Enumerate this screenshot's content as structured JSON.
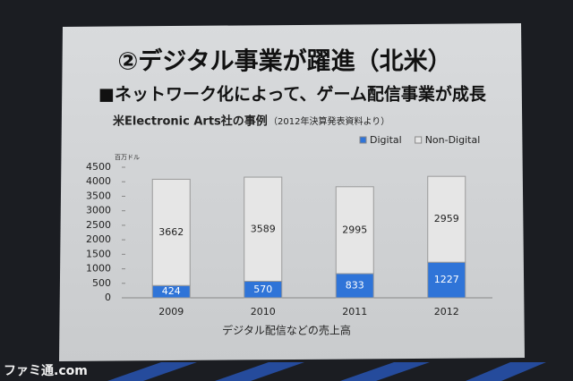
{
  "chart_data": {
    "type": "stacked-bar",
    "title": "②デジタル事業が躍進（北米）",
    "subtitle": "■ネットワーク化によって、ゲーム配信事業が成長",
    "chart_title": "米Electronic Arts社の事例",
    "source_note": "（2012年決算発表資料より）",
    "y_unit": "百万ドル",
    "x_label": "デジタル配信などの売上高",
    "watermark": "ファミ通.com",
    "categories": [
      "2009",
      "2010",
      "2011",
      "2012"
    ],
    "series": [
      {
        "name": "Digital",
        "color": "#2f74d8",
        "values": [
          424,
          570,
          833,
          1227
        ]
      },
      {
        "name": "Non-Digital",
        "color": "#e6e6e6",
        "values": [
          3662,
          3589,
          2995,
          2959
        ]
      }
    ],
    "ylim": [
      0,
      4500
    ],
    "yticks": [
      0,
      500,
      1000,
      1500,
      2000,
      2500,
      3000,
      3500,
      4000,
      4500
    ],
    "grid": false,
    "legend": "top-right"
  }
}
